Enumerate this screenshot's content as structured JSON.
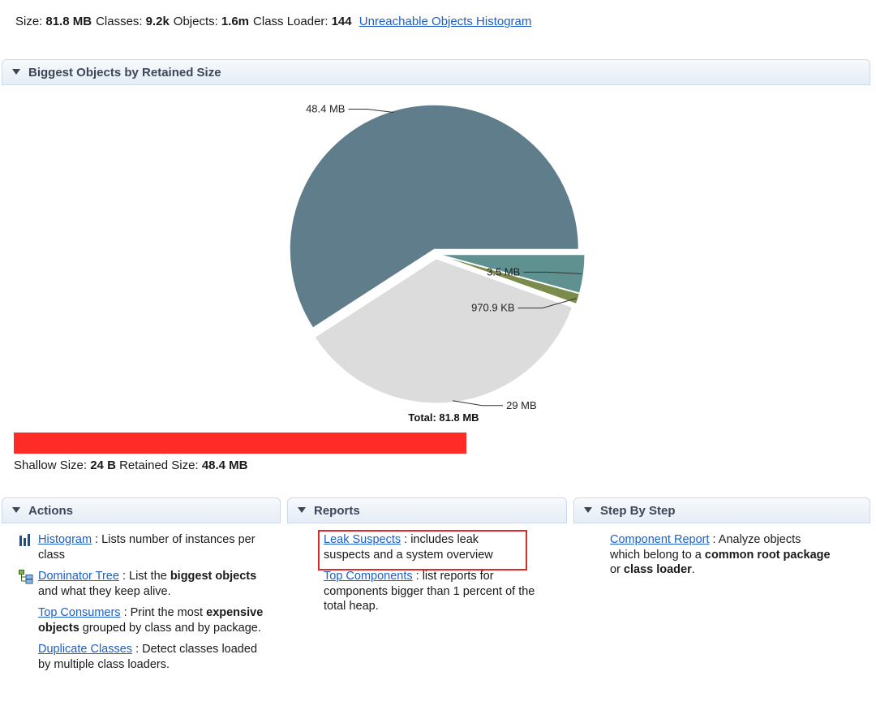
{
  "summary": {
    "size_label": "Size:",
    "size_value": "81.8 MB",
    "classes_label": "Classes:",
    "classes_value": "9.2k",
    "objects_label": "Objects:",
    "objects_value": "1.6m",
    "loader_label": "Class Loader:",
    "loader_value": "144",
    "unreachable_link": "Unreachable Objects Histogram"
  },
  "biggest_section": {
    "title": "Biggest Objects by Retained Size"
  },
  "chart_data": {
    "type": "pie",
    "unit": "MB",
    "total_label": "Total: 81.8 MB",
    "slices": [
      {
        "label": "48.4 MB",
        "value": 48.4,
        "color": "#607d8b"
      },
      {
        "label": "29 MB",
        "value": 29.0,
        "color": "#dcdcdc"
      },
      {
        "label": "970.9 KB",
        "value": 0.9481,
        "color": "#7a8c4c"
      },
      {
        "label": "3.5 MB",
        "value": 3.5,
        "color": "#5f9191"
      }
    ]
  },
  "selection": {
    "shallow_label": "Shallow Size:",
    "shallow_value": "24 B",
    "retained_label": "Retained Size:",
    "retained_value": "48.4 MB",
    "redaction_color": "#ff2b26"
  },
  "actions": {
    "title": "Actions",
    "items": [
      {
        "icon": "histogram-icon",
        "link": "Histogram",
        "t1": " : Lists number of instances per class"
      },
      {
        "icon": "dominator-tree-icon",
        "link": "Dominator Tree",
        "t1": " : List the ",
        "b1": "biggest objects",
        "t2": " and what they keep alive."
      },
      {
        "icon": "",
        "link": "Top Consumers",
        "t1": " : Print the most ",
        "b1": "expensive objects",
        "t2": " grouped by class and by package."
      },
      {
        "icon": "",
        "link": "Duplicate Classes",
        "t1": " : Detect classes loaded by multiple class loaders."
      }
    ]
  },
  "reports": {
    "title": "Reports",
    "items": [
      {
        "link": "Leak Suspects",
        "t1": " : includes leak suspects and a system overview"
      },
      {
        "link": "Top Components",
        "t1": " : list reports for components bigger than 1 percent of the total heap."
      }
    ]
  },
  "step_by_step": {
    "title": "Step By Step",
    "items": [
      {
        "link": "Component Report",
        "t1": " : Analyze objects which belong to a ",
        "b1": "common root package",
        "t2": " or ",
        "b2": "class loader",
        "t3": "."
      }
    ]
  }
}
